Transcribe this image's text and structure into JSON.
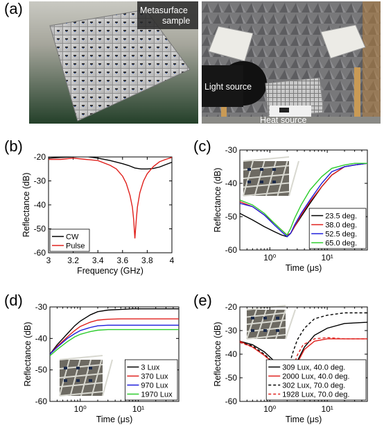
{
  "panels": {
    "a": {
      "letter": "(a)",
      "photo_left_label_1": "Metasurface",
      "photo_left_label_2": "sample",
      "photo_right_label_light": "Light source",
      "photo_right_label_heat": "Heat source"
    }
  },
  "chart_data": [
    {
      "id": "b",
      "letter": "(b)",
      "type": "line",
      "xlabel": "Frequency (GHz)",
      "ylabel": "Reflectance (dB)",
      "xlim": [
        3,
        4
      ],
      "ylim": [
        -60,
        -20
      ],
      "x_ticks": [
        3,
        3.2,
        3.4,
        3.6,
        3.8,
        4
      ],
      "x_tick_labels": [
        "3",
        "3.2",
        "3.4",
        "3.6",
        "3.8",
        "4"
      ],
      "y_ticks": [
        -60,
        -50,
        -40,
        -30,
        -20
      ],
      "y_tick_labels": [
        "-60",
        "-50",
        "-40",
        "-30",
        "-20"
      ],
      "x_scale": "linear",
      "legend_position": "bottom-left",
      "series": [
        {
          "name": "CW",
          "color": "#000000",
          "dash": "solid",
          "x": [
            3.0,
            3.1,
            3.2,
            3.3,
            3.4,
            3.5,
            3.6,
            3.65,
            3.7,
            3.75,
            3.8,
            3.85,
            3.9,
            3.95,
            4.0
          ],
          "y": [
            -20.5,
            -20.2,
            -20.0,
            -19.8,
            -20.5,
            -21.5,
            -22.8,
            -23.6,
            -24.6,
            -25.0,
            -25.0,
            -24.8,
            -24.2,
            -23.2,
            -22.2
          ]
        },
        {
          "name": "Pulse",
          "color": "#e0201c",
          "dash": "solid",
          "x": [
            3.0,
            3.1,
            3.2,
            3.3,
            3.4,
            3.5,
            3.55,
            3.6,
            3.63,
            3.66,
            3.68,
            3.69,
            3.7,
            3.71,
            3.72,
            3.74,
            3.77,
            3.8,
            3.85,
            3.9,
            3.95,
            4.0
          ],
          "y": [
            -21.0,
            -21.0,
            -20.5,
            -21.0,
            -21.5,
            -23.5,
            -25.0,
            -28.0,
            -31.0,
            -36.0,
            -41.0,
            -46.0,
            -54.0,
            -47.0,
            -41.0,
            -35.0,
            -30.0,
            -27.0,
            -24.0,
            -22.0,
            -21.0,
            -20.2
          ]
        }
      ]
    },
    {
      "id": "c",
      "letter": "(c)",
      "type": "line",
      "xlabel": "Time (μs)",
      "ylabel": "Reflectance (dB)",
      "xlim": [
        0.3,
        50
      ],
      "ylim": [
        -60,
        -30
      ],
      "x_scale": "log",
      "x_ticks": [
        1,
        10
      ],
      "x_tick_labels": [
        "10⁰",
        "10¹"
      ],
      "y_ticks": [
        -60,
        -50,
        -40,
        -30
      ],
      "y_tick_labels": [
        "-60",
        "-50",
        "-40",
        "-30"
      ],
      "legend_position": "bottom-right",
      "series": [
        {
          "name": "23.5 deg.",
          "color": "#000000",
          "dash": "solid",
          "x": [
            0.3,
            0.5,
            0.8,
            1.2,
            1.6,
            2.0,
            2.3,
            2.7,
            3.5,
            5,
            8,
            12,
            20,
            30,
            50
          ],
          "y": [
            -49,
            -51,
            -53,
            -54.5,
            -55.5,
            -56,
            -55,
            -53,
            -50,
            -46,
            -41,
            -37.5,
            -35,
            -34.5,
            -34
          ]
        },
        {
          "name": "38.0 deg.",
          "color": "#e0201c",
          "dash": "solid",
          "x": [
            0.3,
            0.5,
            0.8,
            1.2,
            1.6,
            2.0,
            2.3,
            2.7,
            3.5,
            5,
            8,
            12,
            20,
            30,
            50
          ],
          "y": [
            -45.5,
            -47,
            -49.5,
            -52,
            -54,
            -55.5,
            -55,
            -53,
            -49.5,
            -45.5,
            -41,
            -37.5,
            -35,
            -34.5,
            -34
          ]
        },
        {
          "name": "52.5 deg.",
          "color": "#1c1cdc",
          "dash": "solid",
          "x": [
            0.3,
            0.5,
            0.8,
            1.2,
            1.6,
            2.0,
            2.3,
            2.7,
            3.5,
            5,
            8,
            12,
            20,
            30,
            50
          ],
          "y": [
            -46,
            -47,
            -49.5,
            -52.5,
            -54.5,
            -56,
            -55,
            -52.5,
            -49,
            -45,
            -40,
            -36.5,
            -35,
            -34.5,
            -34
          ]
        },
        {
          "name": "65.0 deg.",
          "color": "#2ccc2c",
          "dash": "solid",
          "x": [
            0.3,
            0.5,
            0.8,
            1.2,
            1.6,
            2.0,
            2.3,
            2.7,
            3.5,
            5,
            8,
            12,
            20,
            30,
            50
          ],
          "y": [
            -45,
            -46.5,
            -49,
            -52,
            -54,
            -55.5,
            -53.5,
            -50.5,
            -46.5,
            -42,
            -38,
            -35.5,
            -34.5,
            -34,
            -34
          ]
        }
      ]
    },
    {
      "id": "d",
      "letter": "(d)",
      "type": "line",
      "xlabel": "Time (μs)",
      "ylabel": "Reflectance (dB)",
      "xlim": [
        0.3,
        50
      ],
      "ylim": [
        -60,
        -30
      ],
      "x_scale": "log",
      "x_ticks": [
        1,
        10
      ],
      "x_tick_labels": [
        "10⁰",
        "10¹"
      ],
      "y_ticks": [
        -60,
        -50,
        -40,
        -30
      ],
      "y_tick_labels": [
        "-60",
        "-50",
        "-40",
        "-30"
      ],
      "legend_position": "bottom-right",
      "series": [
        {
          "name": "3 Lux",
          "color": "#000000",
          "dash": "solid",
          "x": [
            0.3,
            0.4,
            0.6,
            0.8,
            1.0,
            1.5,
            2,
            3,
            5,
            8,
            12,
            20,
            50
          ],
          "y": [
            -45,
            -42,
            -38.5,
            -36,
            -34.5,
            -32.5,
            -31.5,
            -31,
            -30.8,
            -30.6,
            -30.6,
            -30.6,
            -30.6
          ]
        },
        {
          "name": "370 Lux",
          "color": "#e0201c",
          "dash": "solid",
          "x": [
            0.3,
            0.4,
            0.6,
            0.8,
            1.0,
            1.5,
            2,
            3,
            5,
            8,
            12,
            20,
            50
          ],
          "y": [
            -45,
            -42.5,
            -39.5,
            -37.5,
            -36.2,
            -34.8,
            -34.2,
            -33.9,
            -33.8,
            -33.8,
            -33.8,
            -33.8,
            -33.8
          ]
        },
        {
          "name": "970 Lux",
          "color": "#1c1cdc",
          "dash": "solid",
          "x": [
            0.3,
            0.4,
            0.6,
            0.8,
            1.0,
            1.5,
            2,
            3,
            5,
            8,
            12,
            20,
            50
          ],
          "y": [
            -45,
            -42.8,
            -40,
            -38.5,
            -37.5,
            -36.5,
            -36,
            -35.8,
            -35.8,
            -35.8,
            -35.8,
            -35.8,
            -35.8
          ]
        },
        {
          "name": "1970 Lux",
          "color": "#2ccc2c",
          "dash": "solid",
          "x": [
            0.3,
            0.4,
            0.6,
            0.8,
            1.0,
            1.5,
            2,
            3,
            5,
            8,
            12,
            20,
            50
          ],
          "y": [
            -45.5,
            -43.5,
            -41,
            -39.5,
            -38.7,
            -37.8,
            -37.4,
            -37.2,
            -37.2,
            -37.2,
            -37.2,
            -37.2,
            -37.2
          ]
        }
      ]
    },
    {
      "id": "e",
      "letter": "(e)",
      "type": "line",
      "xlabel": "Time (μs)",
      "ylabel": "Reflectance (dB)",
      "xlim": [
        0.3,
        50
      ],
      "ylim": [
        -60,
        -20
      ],
      "x_scale": "log",
      "x_ticks": [
        1,
        10
      ],
      "x_tick_labels": [
        "10⁰",
        "10¹"
      ],
      "y_ticks": [
        -60,
        -50,
        -40,
        -30,
        -20
      ],
      "y_tick_labels": [
        "-60",
        "-50",
        "-40",
        "-30",
        "-20"
      ],
      "legend_position": "bottom-right",
      "series": [
        {
          "name": "309 Lux, 40.0 deg.",
          "color": "#000000",
          "dash": "solid",
          "x": [
            0.3,
            0.5,
            0.8,
            1.2,
            1.6,
            1.9,
            2.1,
            2.4,
            3,
            4,
            6,
            10,
            20,
            50
          ],
          "y": [
            -34.5,
            -36,
            -39,
            -43,
            -47.5,
            -51,
            -51.5,
            -48.5,
            -43,
            -37,
            -32,
            -29,
            -27,
            -26.5
          ]
        },
        {
          "name": "2000 Lux, 40.0 deg.",
          "color": "#e0201c",
          "dash": "solid",
          "x": [
            0.3,
            0.5,
            0.8,
            1.2,
            1.6,
            2.0,
            2.4,
            2.7,
            3.2,
            4,
            6,
            10,
            20,
            50
          ],
          "y": [
            -34.5,
            -37,
            -40.5,
            -44,
            -47.5,
            -50,
            -50,
            -47,
            -42.5,
            -38,
            -34.5,
            -33.5,
            -33.5,
            -33.5
          ]
        },
        {
          "name": "302 Lux, 70.0 deg.",
          "color": "#000000",
          "dash": "dashed",
          "x": [
            0.3,
            0.5,
            0.8,
            1.2,
            1.5,
            1.8,
            2.1,
            2.5,
            3,
            4,
            6,
            10,
            20,
            50
          ],
          "y": [
            -35,
            -36.5,
            -40,
            -44,
            -47.5,
            -49.5,
            -46,
            -39.5,
            -34,
            -29,
            -25,
            -23.5,
            -22.5,
            -22.5
          ]
        },
        {
          "name": "1928 Lux, 70.0 deg.",
          "color": "#e0201c",
          "dash": "dashed",
          "x": [
            0.3,
            0.5,
            0.8,
            1.2,
            1.6,
            2.0,
            2.3,
            2.6,
            3.0,
            3.8,
            6,
            10,
            20,
            50
          ],
          "y": [
            -35,
            -37,
            -40.5,
            -44.5,
            -47.5,
            -49.5,
            -48.5,
            -45,
            -40.5,
            -36,
            -33.5,
            -33,
            -33.5,
            -33.5
          ]
        }
      ]
    }
  ]
}
